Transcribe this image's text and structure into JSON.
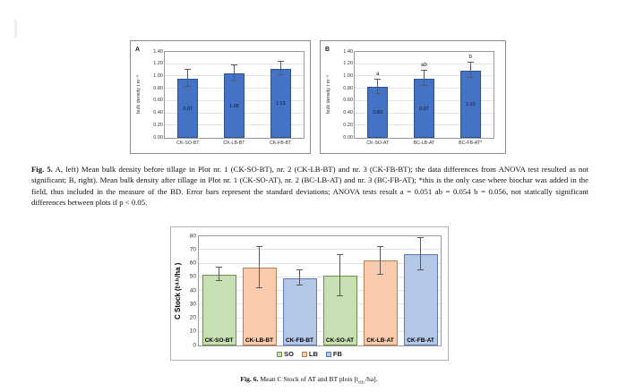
{
  "fig5": {
    "caption_label": "Fig. 5.",
    "caption_text": "A, left) Mean bulk density before tillage in Plot nr. 1 (CK-SO-BT), nr. 2 (CK-LB-BT) and nr. 3 (CK-FB-BT); the data differences from ANOVA test resulted as not significant; B, right). Mean bulk density after tillage in Plot nr. 1 (CK-SO-AT), nr. 2 (BC-LB-AT) and nr. 3 (BC-FB-AT); *this is the only case where biochar was added in the field, thus included in the measure of the BD. Error bars represent the standard deviations; ANOVA tests result a = 0.051 ab = 0.054 b = 0.056, not statically significant differences between plots if p < 0.05."
  },
  "fig6": {
    "caption_label": "Fig. 6.",
    "caption_pre": "Mean C Stock of AT and BT plots [t",
    "caption_sub": "d.b.",
    "caption_post": "/ha]."
  },
  "chart_data": [
    {
      "id": "fig5a",
      "type": "bar",
      "panel_label": "A",
      "ylabel": "bulk density  t m⁻³",
      "ylim": [
        0,
        1.4
      ],
      "yticks": [
        0,
        0.2,
        0.4,
        0.6,
        0.8,
        1.0,
        1.2,
        1.4
      ],
      "ytick_labels": [
        "0.00",
        "0.20",
        "0.40",
        "0.60",
        "0.80",
        "1.00",
        "1.20",
        "1.40"
      ],
      "categories": [
        "CK-SO-BT",
        "CK-LB-BT",
        "CK-FB-BT"
      ],
      "values": [
        0.97,
        1.05,
        1.13
      ],
      "errors": [
        0.14,
        0.13,
        0.11
      ],
      "bar_labels": [
        "0.97",
        "1.05",
        "1.13"
      ],
      "sig_letters": [
        "",
        "",
        ""
      ],
      "bar_fill": "#4472c4",
      "bar_border": "#2f528f",
      "grid": true,
      "bar_ratio": 0.45
    },
    {
      "id": "fig5b",
      "type": "bar",
      "panel_label": "B",
      "ylabel": "bulk density  t m⁻³",
      "ylim": [
        0,
        1.4
      ],
      "yticks": [
        0,
        0.2,
        0.4,
        0.6,
        0.8,
        1.0,
        1.2,
        1.4
      ],
      "ytick_labels": [
        "0.00",
        "0.20",
        "0.40",
        "0.60",
        "0.80",
        "1.00",
        "1.20",
        "1.40"
      ],
      "categories": [
        "CK-SO-AT",
        "BC-LB-AT",
        "BC-FB-AT*"
      ],
      "values": [
        0.83,
        0.97,
        1.1
      ],
      "errors": [
        0.12,
        0.13,
        0.12
      ],
      "bar_labels": [
        "0.83",
        "0.97",
        "1.10"
      ],
      "sig_letters": [
        "a",
        "ab",
        "b"
      ],
      "bar_fill": "#4472c4",
      "bar_border": "#2f528f",
      "grid": true,
      "bar_ratio": 0.45
    },
    {
      "id": "fig6",
      "type": "bar",
      "ylabel_pre": "C Stock (t",
      "ylabel_sub": "d.b.",
      "ylabel_post": "/ha )",
      "ylim": [
        0,
        80
      ],
      "yticks": [
        0,
        10,
        20,
        30,
        40,
        50,
        60,
        70,
        80
      ],
      "ytick_labels": [
        "0",
        "10",
        "20",
        "30",
        "40",
        "50",
        "60",
        "70",
        "80"
      ],
      "categories": [
        "CK-SO-BT",
        "CK-LB-BT",
        "CK-FB-BT",
        "CK-SO-AT",
        "CK-LB-AT",
        "CK-FB-AT"
      ],
      "values": [
        52,
        57,
        49.5,
        51,
        62,
        67
      ],
      "errors": [
        5,
        15,
        5.5,
        15,
        10,
        12
      ],
      "labels_inside": true,
      "color_keys": [
        "SO",
        "LB",
        "FB",
        "SO",
        "LB",
        "FB"
      ],
      "legend": [
        {
          "label": "SO",
          "fill": "#c6e0b4",
          "border": "#6f8f52"
        },
        {
          "label": "LB",
          "fill": "#f8cbad",
          "border": "#bc7d50"
        },
        {
          "label": "FB",
          "fill": "#b4c7e7",
          "border": "#5a7bb5"
        }
      ],
      "legend_position": "bottom",
      "grid": true,
      "bar_ratio": 0.84
    }
  ]
}
